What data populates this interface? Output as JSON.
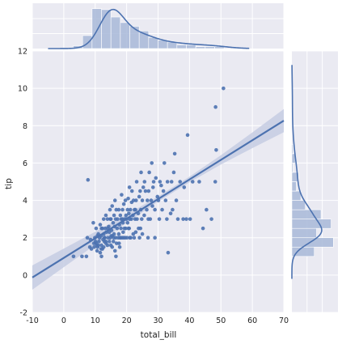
{
  "chart_data": {
    "type": "scatter",
    "subtype": "jointplot-regression",
    "xlabel": "total_bill",
    "ylabel": "tip",
    "xlim": [
      -10,
      70
    ],
    "ylim": [
      -2,
      12
    ],
    "xticks": [
      "-10",
      "0",
      "10",
      "20",
      "30",
      "40",
      "50",
      "60",
      "70"
    ],
    "yticks": [
      "-2",
      "0",
      "2",
      "4",
      "6",
      "8",
      "10",
      "12"
    ],
    "grid": true,
    "colors": {
      "background": "#eaeaf2",
      "grid": "#ffffff",
      "points": "#4c72b0",
      "regression_line": "#4c72b0",
      "confidence_band": "#c5cde3",
      "bars": "#a8b8d8",
      "kde": "#4c72b0"
    },
    "regression": {
      "x_range": [
        -10,
        70
      ],
      "slope": 0.105,
      "intercept": 0.92,
      "ci_halfwidth_low": [
        0.65,
        0.5,
        0.35,
        0.22,
        0.14,
        0.15,
        0.25,
        0.42,
        0.62
      ]
    },
    "points": [
      [
        3.1,
        1.0
      ],
      [
        5.8,
        1.0
      ],
      [
        7.2,
        1.0
      ],
      [
        7.5,
        2.0
      ],
      [
        7.7,
        5.1
      ],
      [
        8.3,
        1.5
      ],
      [
        8.5,
        1.9
      ],
      [
        8.8,
        1.4
      ],
      [
        9.6,
        1.7
      ],
      [
        9.7,
        1.5
      ],
      [
        9.9,
        2.0
      ],
      [
        10.1,
        1.8
      ],
      [
        10.3,
        1.7
      ],
      [
        10.3,
        2.5
      ],
      [
        10.5,
        1.6
      ],
      [
        10.6,
        1.3
      ],
      [
        10.7,
        2.1
      ],
      [
        10.8,
        1.5
      ],
      [
        11.0,
        2.2
      ],
      [
        11.0,
        1.6
      ],
      [
        11.2,
        1.8
      ],
      [
        11.4,
        2.0
      ],
      [
        11.6,
        1.2
      ],
      [
        11.6,
        2.7
      ],
      [
        11.9,
        2.1
      ],
      [
        12.0,
        1.6
      ],
      [
        12.0,
        1.0
      ],
      [
        12.3,
        2.5
      ],
      [
        12.5,
        1.9
      ],
      [
        12.7,
        1.5
      ],
      [
        12.7,
        2.2
      ],
      [
        12.9,
        1.8
      ],
      [
        12.7,
        3.0
      ],
      [
        13.0,
        2.0
      ],
      [
        13.2,
        2.5
      ],
      [
        13.4,
        1.7
      ],
      [
        13.4,
        3.2
      ],
      [
        13.6,
        2.3
      ],
      [
        13.9,
        1.6
      ],
      [
        13.9,
        3.0
      ],
      [
        14.1,
        2.0
      ],
      [
        14.3,
        2.6
      ],
      [
        14.5,
        1.8
      ],
      [
        14.5,
        2.3
      ],
      [
        14.7,
        3.5
      ],
      [
        14.8,
        2.0
      ],
      [
        15.0,
        1.6
      ],
      [
        15.0,
        3.0
      ],
      [
        15.2,
        2.4
      ],
      [
        15.4,
        1.5
      ],
      [
        15.4,
        3.7
      ],
      [
        15.5,
        2.1
      ],
      [
        15.7,
        2.8
      ],
      [
        15.8,
        1.8
      ],
      [
        16.0,
        2.2
      ],
      [
        16.0,
        3.2
      ],
      [
        16.2,
        2.6
      ],
      [
        16.3,
        1.3
      ],
      [
        16.3,
        4.0
      ],
      [
        16.5,
        2.0
      ],
      [
        16.7,
        3.5
      ],
      [
        16.8,
        1.7
      ],
      [
        17.0,
        2.5
      ],
      [
        17.1,
        3.0
      ],
      [
        17.3,
        2.0
      ],
      [
        17.5,
        2.2
      ],
      [
        17.5,
        3.5
      ],
      [
        17.7,
        2.7
      ],
      [
        17.8,
        1.5
      ],
      [
        18.0,
        3.2
      ],
      [
        18.0,
        2.0
      ],
      [
        18.2,
        2.5
      ],
      [
        18.3,
        3.0
      ],
      [
        18.4,
        4.3
      ],
      [
        18.5,
        2.0
      ],
      [
        18.7,
        3.5
      ],
      [
        18.8,
        2.8
      ],
      [
        19.0,
        2.0
      ],
      [
        19.1,
        3.8
      ],
      [
        19.3,
        2.5
      ],
      [
        19.4,
        3.0
      ],
      [
        19.6,
        4.0
      ],
      [
        19.7,
        2.5
      ],
      [
        19.8,
        3.2
      ],
      [
        20.0,
        3.0
      ],
      [
        20.1,
        2.0
      ],
      [
        20.3,
        3.5
      ],
      [
        20.5,
        4.1
      ],
      [
        20.6,
        2.5
      ],
      [
        20.7,
        3.3
      ],
      [
        20.9,
        4.7
      ],
      [
        21.0,
        3.0
      ],
      [
        21.0,
        2.0
      ],
      [
        21.2,
        3.5
      ],
      [
        21.5,
        3.0
      ],
      [
        21.6,
        3.9
      ],
      [
        21.7,
        4.5
      ],
      [
        22.0,
        3.2
      ],
      [
        22.1,
        2.2
      ],
      [
        22.2,
        4.0
      ],
      [
        22.5,
        3.5
      ],
      [
        22.7,
        3.0
      ],
      [
        22.8,
        3.5
      ],
      [
        23.0,
        4.0
      ],
      [
        23.2,
        5.0
      ],
      [
        23.3,
        3.0
      ],
      [
        23.7,
        3.3
      ],
      [
        24.0,
        4.2
      ],
      [
        24.1,
        2.0
      ],
      [
        24.3,
        4.5
      ],
      [
        24.5,
        3.5
      ],
      [
        24.6,
        5.5
      ],
      [
        24.8,
        3.0
      ],
      [
        25.0,
        4.0
      ],
      [
        25.3,
        4.7
      ],
      [
        25.6,
        3.2
      ],
      [
        25.7,
        5.0
      ],
      [
        26.0,
        4.5
      ],
      [
        26.4,
        3.5
      ],
      [
        26.6,
        4.0
      ],
      [
        26.8,
        2.0
      ],
      [
        27.0,
        4.5
      ],
      [
        27.2,
        5.5
      ],
      [
        27.5,
        3.0
      ],
      [
        27.8,
        4.0
      ],
      [
        28.0,
        6.0
      ],
      [
        28.2,
        3.7
      ],
      [
        28.4,
        4.7
      ],
      [
        28.6,
        5.0
      ],
      [
        29.0,
        3.5
      ],
      [
        29.0,
        2.0
      ],
      [
        29.3,
        5.2
      ],
      [
        29.8,
        4.2
      ],
      [
        30.1,
        4.0
      ],
      [
        30.4,
        3.0
      ],
      [
        30.6,
        5.0
      ],
      [
        31.0,
        4.8
      ],
      [
        31.3,
        3.5
      ],
      [
        31.7,
        4.5
      ],
      [
        32.0,
        6.0
      ],
      [
        32.4,
        4.0
      ],
      [
        32.8,
        3.0
      ],
      [
        33.0,
        5.0
      ],
      [
        33.2,
        1.2
      ],
      [
        34.0,
        3.3
      ],
      [
        34.3,
        5.0
      ],
      [
        34.6,
        3.5
      ],
      [
        35.0,
        5.5
      ],
      [
        35.3,
        6.5
      ],
      [
        35.8,
        4.0
      ],
      [
        36.3,
        3.0
      ],
      [
        37.0,
        5.0
      ],
      [
        38.0,
        3.0
      ],
      [
        38.3,
        4.7
      ],
      [
        39.0,
        3.0
      ],
      [
        39.4,
        7.5
      ],
      [
        40.2,
        3.0
      ],
      [
        41.0,
        5.0
      ],
      [
        43.1,
        5.0
      ],
      [
        44.3,
        2.5
      ],
      [
        45.4,
        3.5
      ],
      [
        47.0,
        3.0
      ],
      [
        48.2,
        5.0
      ],
      [
        48.3,
        9.0
      ],
      [
        48.5,
        6.7
      ],
      [
        50.8,
        10.0
      ],
      [
        13.0,
        2.0
      ],
      [
        19.5,
        2.0
      ],
      [
        17.6,
        1.7
      ],
      [
        22.4,
        2.0
      ],
      [
        15.9,
        2.0
      ],
      [
        16.6,
        1.0
      ],
      [
        21.3,
        2.0
      ],
      [
        24.4,
        2.5
      ],
      [
        12.3,
        1.4
      ],
      [
        18.6,
        3.0
      ],
      [
        20.3,
        2.8
      ],
      [
        26.9,
        3.0
      ],
      [
        14.0,
        2.5
      ],
      [
        11.9,
        1.4
      ],
      [
        17.9,
        2.0
      ],
      [
        20.8,
        2.5
      ],
      [
        23.8,
        2.5
      ],
      [
        25.0,
        2.2
      ],
      [
        16.5,
        3.0
      ],
      [
        13.4,
        1.8
      ],
      [
        15.1,
        2.1
      ],
      [
        18.9,
        2.3
      ],
      [
        22.9,
        2.3
      ],
      [
        14.8,
        3.0
      ],
      [
        12.0,
        2.5
      ],
      [
        9.4,
        2.8
      ]
    ],
    "top_histogram": {
      "bins": [
        3,
        6,
        9,
        12,
        15,
        18,
        21,
        24,
        27,
        30,
        33,
        36,
        39,
        42,
        45,
        48,
        51
      ],
      "counts": [
        3,
        14,
        43,
        42,
        34,
        28,
        24,
        19,
        12,
        9,
        7,
        4,
        4,
        2,
        2,
        2
      ],
      "kde_range": [
        -5,
        59
      ],
      "kde_peak_x": 15.5
    },
    "right_histogram": {
      "bins": [
        1,
        1.5,
        2,
        2.5,
        3,
        3.5,
        4,
        4.5,
        5,
        5.5,
        6,
        6.5,
        7
      ],
      "counts": [
        20,
        37,
        22,
        35,
        26,
        12,
        8,
        4,
        6,
        1,
        3,
        1
      ],
      "kde_range": [
        -0.2,
        11.3
      ],
      "kde_peak_y": 2.6
    }
  }
}
